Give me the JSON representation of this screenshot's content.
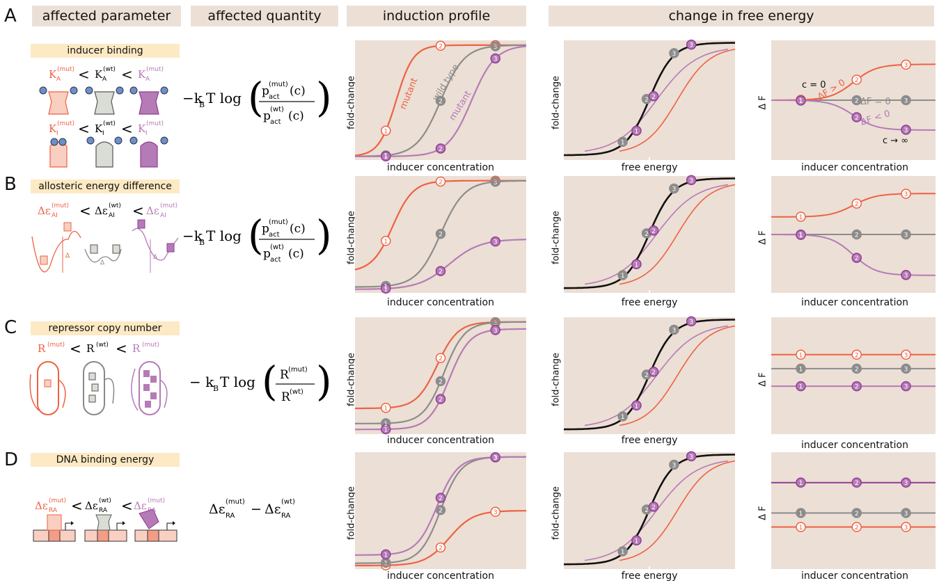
{
  "columns": {
    "affected_parameter": "affected parameter",
    "affected_quantity": "affected quantity",
    "induction_profile": "induction profile",
    "change_free_energy": "change in free energy"
  },
  "rows": [
    {
      "letter": "A",
      "tag": "inducer binding"
    },
    {
      "letter": "B",
      "tag": "allosteric energy difference"
    },
    {
      "letter": "C",
      "tag": "repressor  copy number"
    },
    {
      "letter": "D",
      "tag": "DNA binding energy"
    }
  ],
  "axes": {
    "fold_change": "fold-change",
    "inducer_concentration": "inducer concentration",
    "free_energy": "free energy",
    "delta_f": "Δ F"
  },
  "annotations": {
    "mutant": "mutant",
    "wild_type": "wild type",
    "c0": "c = 0",
    "cinf": "c → ∞",
    "df_pos": "ΔF > 0",
    "df_zero": "ΔF = 0",
    "df_neg": "ΔF < 0"
  },
  "colors": {
    "red": "#ee6142",
    "gray": "#8c8c8c",
    "purple": "#b57bb6",
    "dark_purple": "#8e3c93",
    "black": "#111111",
    "panel": "#ecdfd5",
    "header": "#ece0d6",
    "tag": "#fde9c3"
  }
}
